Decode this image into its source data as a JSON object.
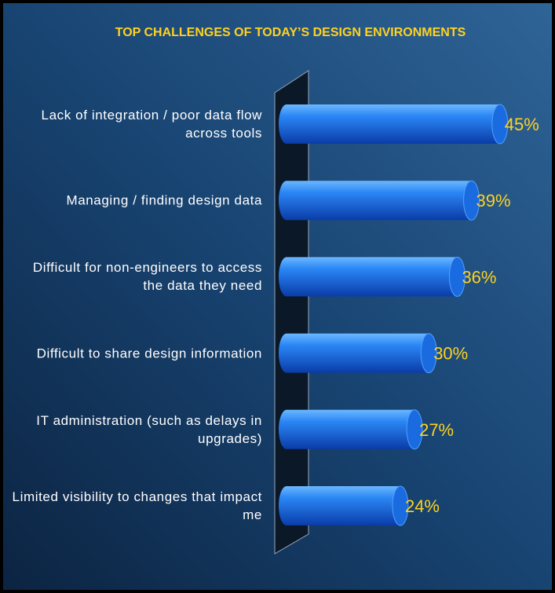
{
  "chart_data": {
    "type": "bar",
    "orientation": "horizontal",
    "title": "TOP CHALLENGES OF TODAY’S DESIGN ENVIRONMENTS",
    "categories": [
      "Lack of integration / poor data flow across tools",
      "Managing / finding design data",
      "Difficult for non-engineers to access the data they need",
      "Difficult to share design information",
      "IT administration (such as delays in upgrades)",
      "Limited visibility to changes that impact me"
    ],
    "values": [
      45,
      39,
      36,
      30,
      27,
      24
    ],
    "value_labels": [
      "45%",
      "39%",
      "36%",
      "30%",
      "27%",
      "24%"
    ],
    "color": "#2a86f5",
    "label_color": "#ffd21f"
  }
}
